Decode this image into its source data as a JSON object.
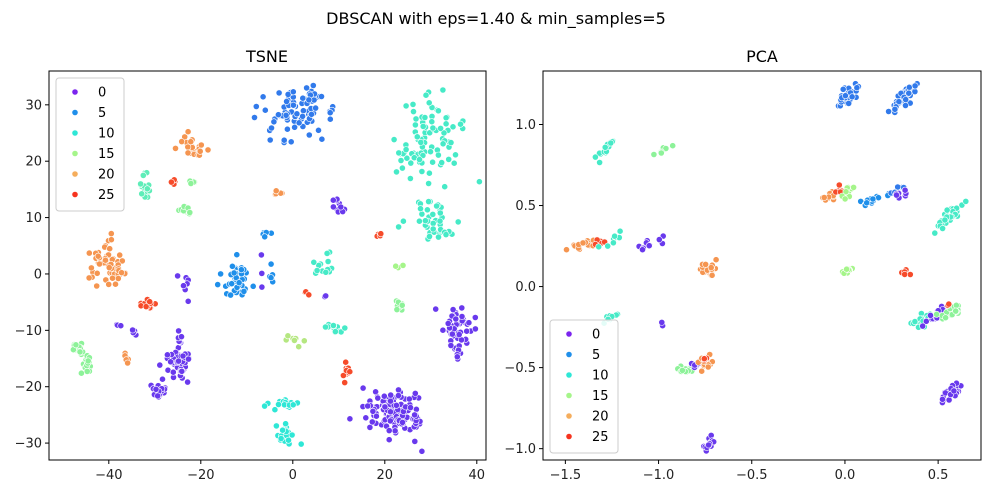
{
  "suptitle": "DBSCAN with eps=1.40 & min_samples=5",
  "legend_colors": {
    "0": "#7b24ee",
    "5": "#1f8fea",
    "10": "#2ee7d6",
    "15": "#a5f58a",
    "20": "#f5ad5c",
    "25": "#f6331e"
  },
  "chart_data": [
    {
      "type": "scatter",
      "title": "TSNE",
      "xlabel": "",
      "ylabel": "",
      "xlim": [
        -53,
        42
      ],
      "ylim": [
        -33,
        36
      ],
      "xticks": [
        -40,
        -20,
        0,
        20,
        40
      ],
      "xtick_labels": [
        "−40",
        "−20",
        "0",
        "20",
        "40"
      ],
      "yticks": [
        -30,
        -20,
        -10,
        0,
        10,
        20,
        30
      ],
      "ytick_labels": [
        "−30",
        "−20",
        "−10",
        "0",
        "10",
        "20",
        "30"
      ],
      "legend": {
        "position": "top-left",
        "labels": [
          "0",
          "5",
          "10",
          "15",
          "20",
          "25"
        ]
      },
      "clusters": [
        {
          "label": 4,
          "cx": 0.0,
          "cy": 27.5,
          "sx": 4.0,
          "sy": 2.5,
          "n": 70
        },
        {
          "label": 4,
          "cx": 4.5,
          "cy": 31.5,
          "sx": 1.0,
          "sy": 0.8,
          "n": 12
        },
        {
          "label": 11,
          "cx": 29.0,
          "cy": 24.0,
          "sx": 4.0,
          "sy": 4.0,
          "n": 90
        },
        {
          "label": 11,
          "cx": 29.5,
          "cy": 10.0,
          "sx": 2.5,
          "sy": 1.5,
          "n": 30
        },
        {
          "label": 11,
          "cx": 32.0,
          "cy": 7.5,
          "sx": 1.0,
          "sy": 0.7,
          "n": 10
        },
        {
          "label": 12,
          "cx": -32.0,
          "cy": 15.5,
          "sx": 1.0,
          "sy": 1.3,
          "n": 18
        },
        {
          "label": 14,
          "cx": -22.0,
          "cy": 16.3,
          "sx": 0.6,
          "sy": 0.2,
          "n": 5
        },
        {
          "label": 14,
          "cx": -23.5,
          "cy": 11.3,
          "sx": 0.8,
          "sy": 0.4,
          "n": 8
        },
        {
          "label": 21,
          "cx": -22.5,
          "cy": 22.5,
          "sx": 1.3,
          "sy": 1.0,
          "n": 20
        },
        {
          "label": 21,
          "cx": -20.0,
          "cy": 21.5,
          "sx": 0.8,
          "sy": 0.4,
          "n": 5
        },
        {
          "label": 24,
          "cx": -26.0,
          "cy": 16.5,
          "sx": 0.3,
          "sy": 0.4,
          "n": 4
        },
        {
          "label": 21,
          "cx": -3.5,
          "cy": 14.8,
          "sx": 0.8,
          "sy": 0.7,
          "n": 6
        },
        {
          "label": 1,
          "cx": 10.0,
          "cy": 12.2,
          "sx": 1.0,
          "sy": 0.9,
          "n": 10
        },
        {
          "label": 5,
          "cx": -6.0,
          "cy": 7.3,
          "sx": 0.5,
          "sy": 0.3,
          "n": 5
        },
        {
          "label": 21,
          "cx": -41.0,
          "cy": 2.0,
          "sx": 1.8,
          "sy": 1.7,
          "n": 45
        },
        {
          "label": 21,
          "cx": -37.5,
          "cy": 0.0,
          "sx": 0.8,
          "sy": 0.6,
          "n": 10
        },
        {
          "label": 5,
          "cx": -12.0,
          "cy": -1.0,
          "sx": 1.5,
          "sy": 1.5,
          "n": 45
        },
        {
          "label": 5,
          "cx": -5.0,
          "cy": -0.5,
          "sx": 0.3,
          "sy": 1.5,
          "n": 6
        },
        {
          "label": 11,
          "cx": 6.5,
          "cy": 1.5,
          "sx": 1.3,
          "sy": 1.3,
          "n": 15
        },
        {
          "label": 1,
          "cx": -23.5,
          "cy": -2.5,
          "sx": 1.0,
          "sy": 1.5,
          "n": 7
        },
        {
          "label": 1,
          "cx": -7.0,
          "cy": -3.0,
          "sx": 0.8,
          "sy": 2.5,
          "n": 3
        },
        {
          "label": 1,
          "cx": 7.0,
          "cy": -3.8,
          "sx": 0.3,
          "sy": 0.3,
          "n": 2
        },
        {
          "label": 24,
          "cx": 3.0,
          "cy": -3.4,
          "sx": 0.4,
          "sy": 0.3,
          "n": 3
        },
        {
          "label": 24,
          "cx": 19.0,
          "cy": 6.8,
          "sx": 0.4,
          "sy": 0.4,
          "n": 4
        },
        {
          "label": 15,
          "cx": 23.0,
          "cy": 1.5,
          "sx": 0.5,
          "sy": 0.2,
          "n": 3
        },
        {
          "label": 14,
          "cx": 23.0,
          "cy": -5.5,
          "sx": 0.9,
          "sy": 0.7,
          "n": 10
        },
        {
          "label": 24,
          "cx": -31.0,
          "cy": -5.8,
          "sx": 1.0,
          "sy": 0.6,
          "n": 12
        },
        {
          "label": 1,
          "cx": 36.0,
          "cy": -10.0,
          "sx": 1.6,
          "sy": 2.2,
          "n": 60
        },
        {
          "label": 1,
          "cx": 36.0,
          "cy": -15.0,
          "sx": 0.5,
          "sy": 0.5,
          "n": 3
        },
        {
          "label": 11,
          "cx": 9.0,
          "cy": -9.5,
          "sx": 0.9,
          "sy": 0.9,
          "n": 12
        },
        {
          "label": 16,
          "cx": 0.5,
          "cy": -12.0,
          "sx": 0.7,
          "sy": 0.5,
          "n": 7
        },
        {
          "label": 1,
          "cx": -38.0,
          "cy": -9.2,
          "sx": 0.3,
          "sy": 0.3,
          "n": 4
        },
        {
          "label": 1,
          "cx": -34.5,
          "cy": -10.5,
          "sx": 0.4,
          "sy": 0.4,
          "n": 4
        },
        {
          "label": 1,
          "cx": -25.0,
          "cy": -15.5,
          "sx": 1.3,
          "sy": 1.5,
          "n": 60
        },
        {
          "label": 1,
          "cx": -24.5,
          "cy": -11.0,
          "sx": 0.4,
          "sy": 0.8,
          "n": 6
        },
        {
          "label": 14,
          "cx": -46.5,
          "cy": -13.5,
          "sx": 0.8,
          "sy": 0.6,
          "n": 15
        },
        {
          "label": 14,
          "cx": -45.0,
          "cy": -16.0,
          "sx": 0.8,
          "sy": 0.7,
          "n": 15
        },
        {
          "label": 21,
          "cx": -36.0,
          "cy": -15.0,
          "sx": 0.3,
          "sy": 0.7,
          "n": 6
        },
        {
          "label": 24,
          "cx": 11.5,
          "cy": -17.5,
          "sx": 0.4,
          "sy": 0.8,
          "n": 10
        },
        {
          "label": 1,
          "cx": -29.0,
          "cy": -21.0,
          "sx": 0.8,
          "sy": 0.9,
          "n": 20
        },
        {
          "label": 10,
          "cx": -2.5,
          "cy": -23.0,
          "sx": 1.5,
          "sy": 0.5,
          "n": 20
        },
        {
          "label": 10,
          "cx": -1.0,
          "cy": -28.5,
          "sx": 1.2,
          "sy": 1.0,
          "n": 25
        },
        {
          "label": 1,
          "cx": 22.0,
          "cy": -24.5,
          "sx": 3.0,
          "sy": 2.3,
          "n": 110
        },
        {
          "label": 1,
          "cx": 27.0,
          "cy": -25.5,
          "sx": 0.8,
          "sy": 0.6,
          "n": 12
        }
      ]
    },
    {
      "type": "scatter",
      "title": "PCA",
      "xlabel": "",
      "ylabel": "",
      "xlim": [
        -1.62,
        0.73
      ],
      "ylim": [
        -1.07,
        1.33
      ],
      "xticks": [
        -1.5,
        -1.0,
        -0.5,
        0.0,
        0.5
      ],
      "xtick_labels": [
        "−1.5",
        "−1.0",
        "−0.5",
        "0.0",
        "0.5"
      ],
      "yticks": [
        -1.0,
        -0.5,
        0.0,
        0.5,
        1.0
      ],
      "ytick_labels": [
        "−1.0",
        "−0.5",
        "0.0",
        "0.5",
        "1.0"
      ],
      "legend": {
        "position": "bottom-left",
        "labels": [
          "0",
          "5",
          "10",
          "15",
          "20",
          "25"
        ]
      },
      "clusters": [
        {
          "label": 4,
          "cx": 0.0,
          "cy": 1.16,
          "sx": 0.03,
          "sy": 0.025,
          "n": 30,
          "slope": 0.7
        },
        {
          "label": 4,
          "cx": 0.32,
          "cy": 1.17,
          "sx": 0.035,
          "sy": 0.025,
          "n": 40,
          "slope": 1.1
        },
        {
          "label": 11,
          "cx": -1.28,
          "cy": 0.85,
          "sx": 0.025,
          "sy": 0.015,
          "n": 15,
          "slope": 1.0
        },
        {
          "label": 14,
          "cx": -0.98,
          "cy": 0.84,
          "sx": 0.025,
          "sy": 0.01,
          "n": 8,
          "slope": 0.6
        },
        {
          "label": 21,
          "cx": -0.08,
          "cy": 0.56,
          "sx": 0.025,
          "sy": 0.015,
          "n": 10,
          "slope": 0.4
        },
        {
          "label": 24,
          "cx": -0.03,
          "cy": 0.59,
          "sx": 0.01,
          "sy": 0.015,
          "n": 6,
          "slope": 0.0
        },
        {
          "label": 15,
          "cx": 0.02,
          "cy": 0.59,
          "sx": 0.02,
          "sy": 0.02,
          "n": 10,
          "slope": 1.0
        },
        {
          "label": 5,
          "cx": 0.14,
          "cy": 0.53,
          "sx": 0.04,
          "sy": 0.01,
          "n": 15,
          "slope": 0.4
        },
        {
          "label": 4,
          "cx": 0.28,
          "cy": 0.59,
          "sx": 0.02,
          "sy": 0.01,
          "n": 8,
          "slope": 0.4
        },
        {
          "label": 1,
          "cx": 0.31,
          "cy": 0.56,
          "sx": 0.03,
          "sy": 0.01,
          "n": 8,
          "slope": 0.1
        },
        {
          "label": 11,
          "cx": 0.55,
          "cy": 0.42,
          "sx": 0.035,
          "sy": 0.02,
          "n": 40,
          "slope": 1.0
        },
        {
          "label": 21,
          "cx": -1.42,
          "cy": 0.25,
          "sx": 0.05,
          "sy": 0.012,
          "n": 20,
          "slope": 0.3
        },
        {
          "label": 24,
          "cx": -1.32,
          "cy": 0.28,
          "sx": 0.02,
          "sy": 0.012,
          "n": 6,
          "slope": 0.3
        },
        {
          "label": 11,
          "cx": -1.27,
          "cy": 0.27,
          "sx": 0.04,
          "sy": 0.015,
          "n": 7,
          "slope": 0.5
        },
        {
          "label": 1,
          "cx": -1.04,
          "cy": 0.26,
          "sx": 0.05,
          "sy": 0.015,
          "n": 10,
          "slope": 0.2
        },
        {
          "label": 21,
          "cx": -0.74,
          "cy": 0.11,
          "sx": 0.035,
          "sy": 0.02,
          "n": 22,
          "slope": 0.6
        },
        {
          "label": 15,
          "cx": 0.02,
          "cy": 0.1,
          "sx": 0.02,
          "sy": 0.01,
          "n": 12,
          "slope": 0.3
        },
        {
          "label": 24,
          "cx": 0.32,
          "cy": 0.09,
          "sx": 0.01,
          "sy": 0.015,
          "n": 8,
          "slope": 0.0
        },
        {
          "label": 1,
          "cx": -0.98,
          "cy": -0.23,
          "sx": 0.003,
          "sy": 0.008,
          "n": 2,
          "slope": 0.0
        },
        {
          "label": 11,
          "cx": -1.27,
          "cy": -0.2,
          "sx": 0.03,
          "sy": 0.015,
          "n": 8,
          "slope": 0.6
        },
        {
          "label": 11,
          "cx": 0.42,
          "cy": -0.21,
          "sx": 0.04,
          "sy": 0.02,
          "n": 30,
          "slope": 0.5
        },
        {
          "label": 1,
          "cx": 0.5,
          "cy": -0.18,
          "sx": 0.04,
          "sy": 0.015,
          "n": 20,
          "slope": 0.7
        },
        {
          "label": 14,
          "cx": 0.56,
          "cy": -0.16,
          "sx": 0.035,
          "sy": 0.02,
          "n": 20,
          "slope": 0.3
        },
        {
          "label": 24,
          "cx": 0.55,
          "cy": -0.11,
          "sx": 0.005,
          "sy": 0.005,
          "n": 2,
          "slope": 0.0
        },
        {
          "label": 14,
          "cx": -0.84,
          "cy": -0.5,
          "sx": 0.03,
          "sy": 0.02,
          "n": 12,
          "slope": 0.5
        },
        {
          "label": 1,
          "cx": -0.77,
          "cy": -0.47,
          "sx": 0.03,
          "sy": 0.012,
          "n": 10,
          "slope": 0.3
        },
        {
          "label": 21,
          "cx": -0.74,
          "cy": -0.47,
          "sx": 0.02,
          "sy": 0.03,
          "n": 14,
          "slope": 0.3
        },
        {
          "label": 24,
          "cx": -0.75,
          "cy": -0.44,
          "sx": 0.01,
          "sy": 0.01,
          "n": 4,
          "slope": 0.0
        },
        {
          "label": 1,
          "cx": 0.57,
          "cy": -0.65,
          "sx": 0.03,
          "sy": 0.02,
          "n": 30,
          "slope": 0.7
        },
        {
          "label": 1,
          "cx": -0.73,
          "cy": -0.97,
          "sx": 0.02,
          "sy": 0.015,
          "n": 20,
          "slope": 0.8
        }
      ]
    }
  ]
}
